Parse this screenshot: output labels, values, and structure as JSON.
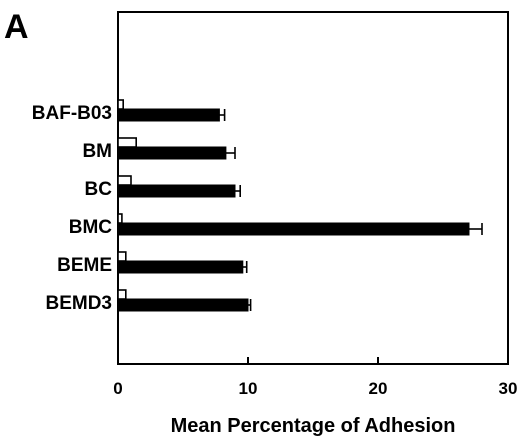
{
  "panel_label": "A",
  "chart_data": {
    "type": "bar",
    "orientation": "horizontal",
    "title": "",
    "xlabel": "Mean Percentage of Adhesion",
    "ylabel": "",
    "xlim": [
      0,
      30
    ],
    "xticks": [
      0,
      10,
      20,
      30
    ],
    "grid": false,
    "legend": "none",
    "categories": [
      "BAF-B03",
      "BM",
      "BC",
      "BMC",
      "BEME",
      "BEMD3"
    ],
    "series": [
      {
        "fill": "#ffffff",
        "values": [
          0.4,
          1.4,
          1.0,
          0.3,
          0.6,
          0.6
        ],
        "errors": [
          0,
          0,
          0,
          0,
          0,
          0
        ]
      },
      {
        "fill": "#000000",
        "values": [
          7.8,
          8.3,
          9.0,
          27.0,
          9.6,
          10.0
        ],
        "errors": [
          0.4,
          0.7,
          0.4,
          1.0,
          0.3,
          0.2
        ]
      }
    ]
  }
}
